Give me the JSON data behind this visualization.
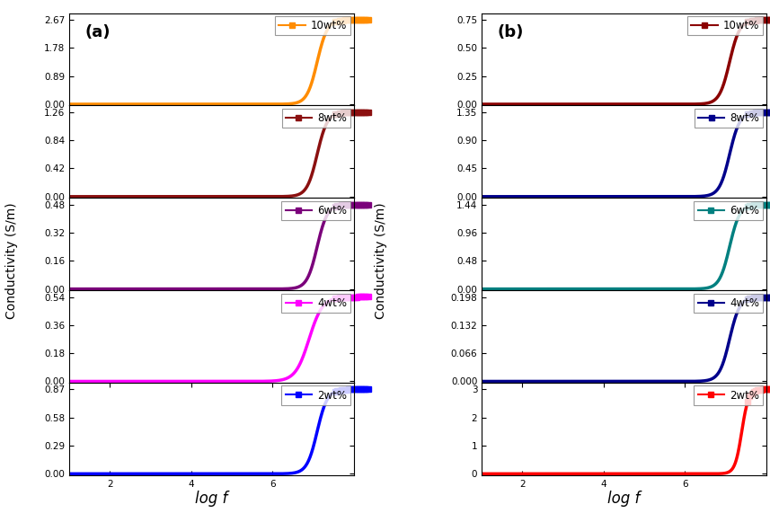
{
  "panel_a": {
    "label": "(a)",
    "series": [
      {
        "label": "10wt%",
        "color": "#FF8C00",
        "ymax": 2.67,
        "yticks": [
          0.0,
          0.89,
          1.78,
          2.67
        ],
        "knee": 7.1,
        "steep": 8.0
      },
      {
        "label": "8wt%",
        "color": "#8B1010",
        "ymax": 1.26,
        "yticks": [
          0.0,
          0.42,
          0.84,
          1.26
        ],
        "knee": 7.1,
        "steep": 8.0
      },
      {
        "label": "6wt%",
        "color": "#7B007B",
        "ymax": 0.48,
        "yticks": [
          0.0,
          0.16,
          0.32,
          0.48
        ],
        "knee": 7.1,
        "steep": 8.0
      },
      {
        "label": "4wt%",
        "color": "#FF00FF",
        "ymax": 0.54,
        "yticks": [
          0.0,
          0.18,
          0.36,
          0.54
        ],
        "knee": 6.9,
        "steep": 6.0
      },
      {
        "label": "2wt%",
        "color": "#0000FF",
        "ymax": 0.87,
        "yticks": [
          0.0,
          0.29,
          0.58,
          0.87
        ],
        "knee": 7.1,
        "steep": 8.0
      }
    ]
  },
  "panel_b": {
    "label": "(b)",
    "series": [
      {
        "label": "10wt%",
        "color": "#8B0000",
        "ymax": 0.75,
        "yticks": [
          0.0,
          0.25,
          0.5,
          0.75
        ],
        "knee": 7.1,
        "steep": 8.0
      },
      {
        "label": "8wt%",
        "color": "#00008B",
        "ymax": 1.35,
        "yticks": [
          0.0,
          0.45,
          0.9,
          1.35
        ],
        "knee": 7.1,
        "steep": 8.0
      },
      {
        "label": "6wt%",
        "color": "#008080",
        "ymax": 1.44,
        "yticks": [
          0.0,
          0.48,
          0.96,
          1.44
        ],
        "knee": 7.1,
        "steep": 8.0
      },
      {
        "label": "4wt%",
        "color": "#00008B",
        "ymax": 0.198,
        "yticks": [
          0.0,
          0.066,
          0.132,
          0.198
        ],
        "knee": 7.1,
        "steep": 8.0
      },
      {
        "label": "2wt%",
        "color": "#FF0000",
        "ymax": 3.0,
        "yticks": [
          0,
          1,
          2,
          3
        ],
        "knee": 7.4,
        "steep": 12.0
      }
    ]
  },
  "xlabel": "log f",
  "ylabel": "Conductivity (S/m)",
  "xlim": [
    1,
    8
  ],
  "xticks": [
    2,
    4,
    6
  ],
  "xticklabels": [
    "2",
    "4",
    "6"
  ],
  "line_width": 2.5
}
